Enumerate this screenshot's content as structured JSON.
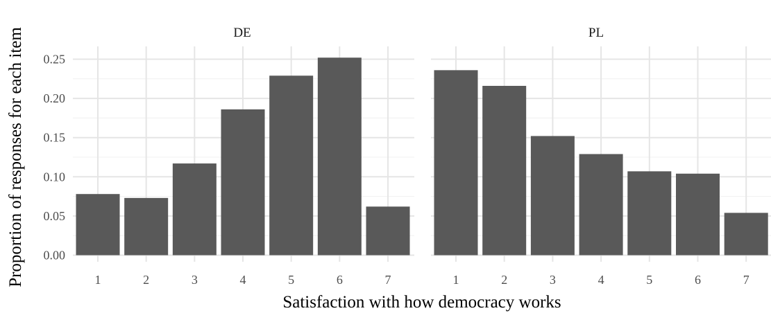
{
  "chart_data": {
    "type": "bar",
    "xlabel": "Satisfaction with how democracy works",
    "ylabel": "Proportion of responses for each item",
    "ylim": [
      0,
      0.265
    ],
    "yticks": [
      0.0,
      0.05,
      0.1,
      0.15,
      0.2,
      0.25
    ],
    "ytick_labels": [
      "0.00",
      "0.05",
      "0.10",
      "0.15",
      "0.20",
      "0.25"
    ],
    "categories": [
      "1",
      "2",
      "3",
      "4",
      "5",
      "6",
      "7"
    ],
    "grid": true,
    "bar_color": "#595959",
    "panels": [
      {
        "label": "DE",
        "values": [
          0.078,
          0.073,
          0.117,
          0.186,
          0.229,
          0.252,
          0.062
        ]
      },
      {
        "label": "PL",
        "values": [
          0.236,
          0.216,
          0.152,
          0.129,
          0.107,
          0.104,
          0.054
        ]
      }
    ]
  }
}
